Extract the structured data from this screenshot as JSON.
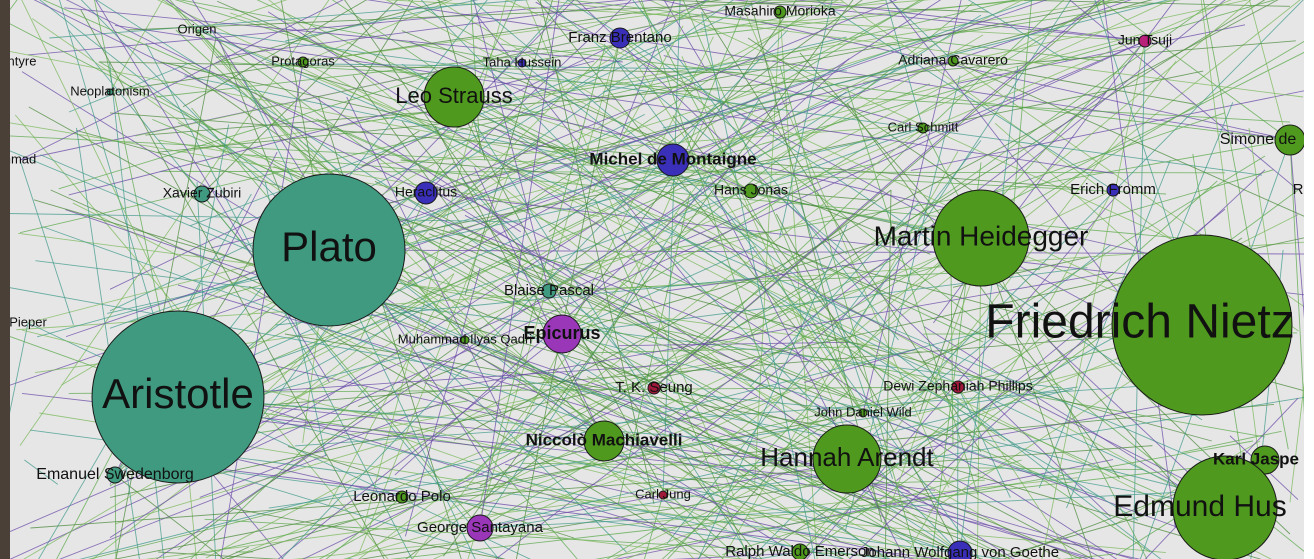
{
  "nodes": [
    {
      "label": "Origen"
    },
    {
      "label": "Masahiro Morioka"
    },
    {
      "label": "Franz Brentano"
    },
    {
      "label": "Jun Tsuji"
    },
    {
      "label": "ntyre"
    },
    {
      "label": "Protagoras"
    },
    {
      "label": "Taha Hussein"
    },
    {
      "label": "Adriana Cavarero"
    },
    {
      "label": "Neoplatonism"
    },
    {
      "label": "Leo Strauss"
    },
    {
      "label": "Carl Schmitt"
    },
    {
      "label": "Simone de"
    },
    {
      "label": "nmad"
    },
    {
      "label": "Michel de Montaigne"
    },
    {
      "label": "Xavier Zubiri"
    },
    {
      "label": "Heraclitus"
    },
    {
      "label": "Hans Jonas"
    },
    {
      "label": "Erich Fromm"
    },
    {
      "label": "R"
    },
    {
      "label": "Plato"
    },
    {
      "label": "Martin Heidegger"
    },
    {
      "label": "Friedrich Nietz"
    },
    {
      "label": "Blaise Pascal"
    },
    {
      "label": "Pieper"
    },
    {
      "label": "Epicurus"
    },
    {
      "label": "Muhammad Ilyas Qadri"
    },
    {
      "label": "Aristotle"
    },
    {
      "label": "T. K. Seung"
    },
    {
      "label": "Dewi Zephaniah Phillips"
    },
    {
      "label": "John Daniel Wild"
    },
    {
      "label": "Niccolò Machiavelli"
    },
    {
      "label": "Hannah Arendt"
    },
    {
      "label": "Karl Jaspe"
    },
    {
      "label": "Emanuel Swedenborg"
    },
    {
      "label": "Edmund Hus"
    },
    {
      "label": "Leonardo Polo"
    },
    {
      "label": "Carl Jung"
    },
    {
      "label": "George Santayana"
    },
    {
      "label": "Ralph Waldo Emerson"
    },
    {
      "label": "Johann Wolfgang von Goethe"
    }
  ]
}
